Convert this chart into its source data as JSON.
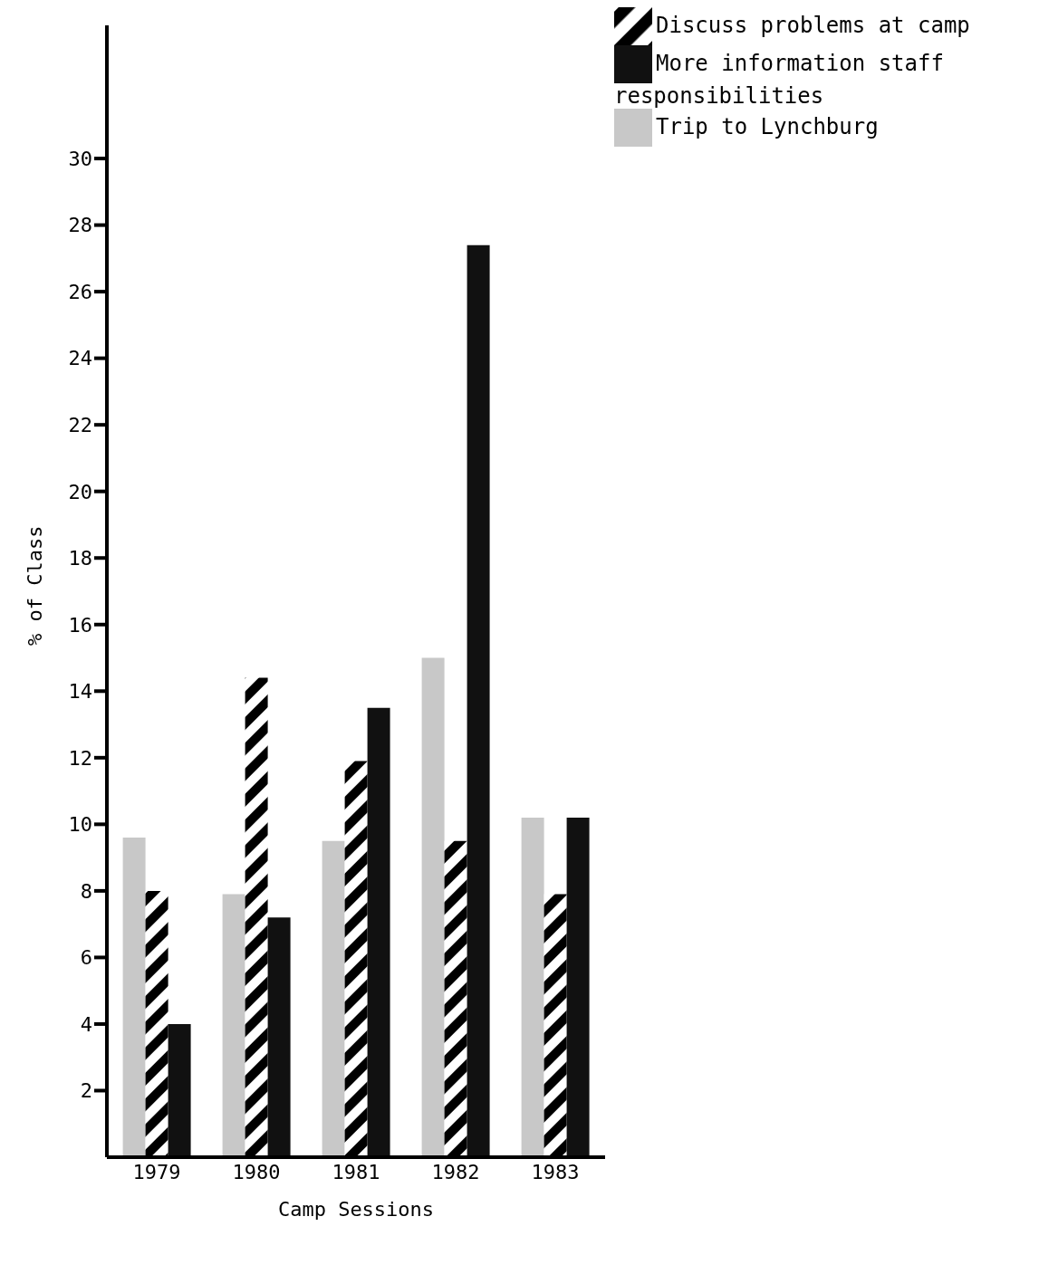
{
  "chart_data": {
    "type": "bar",
    "xlabel": "Camp Sessions",
    "ylabel": "% of Class",
    "categories": [
      "1979",
      "1980",
      "1981",
      "1982",
      "1983"
    ],
    "series": [
      {
        "name": "Trip to Lynchburg",
        "color": "#c8c8c8",
        "values": [
          9.6,
          7.9,
          9.5,
          15.0,
          10.2
        ]
      },
      {
        "name": "Discuss problems at camp",
        "color": "#000000",
        "values": [
          8.0,
          14.4,
          11.9,
          9.5,
          7.9
        ]
      },
      {
        "name": "More information staff responsibilities",
        "color": "#111111",
        "values": [
          4.0,
          7.2,
          13.5,
          27.4,
          10.2
        ]
      }
    ],
    "ylim": [
      0,
      34
    ],
    "yticks": [
      2,
      4,
      6,
      8,
      10,
      12,
      14,
      16,
      18,
      20,
      22,
      24,
      26,
      28,
      30
    ],
    "legend": "top right",
    "grid": false
  }
}
